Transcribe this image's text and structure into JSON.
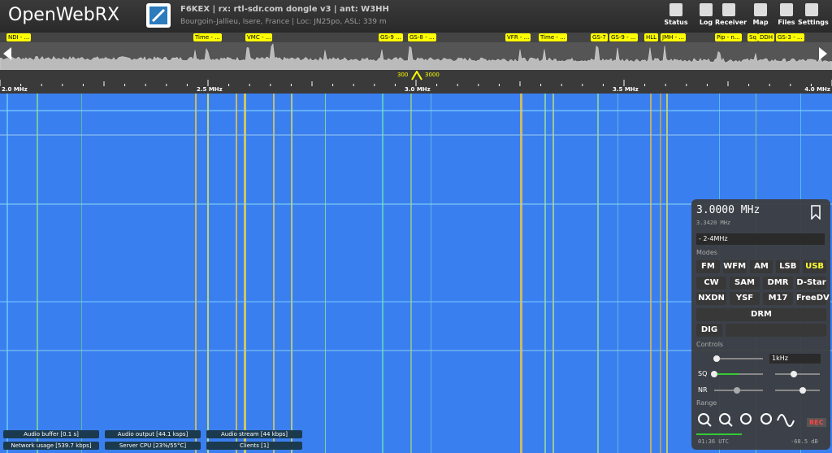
{
  "header": {
    "logo": "OpenWebRX",
    "receiver": "F6KEX | rx: rtl-sdr.com dongle v3 | ant: W3HH",
    "location": "Bourgoin-Jallieu, Isere, France | Loc: JN25po, ASL: 339 m",
    "nav": [
      "Status",
      "Log",
      "Receiver",
      "Map",
      "Files",
      "Settings"
    ]
  },
  "bookmarks": [
    "NDI - ...",
    "Time - ...",
    "VMC - ...",
    "GS-9 ...",
    "GS-8 - ...",
    "VFR - ...",
    "Time - ...",
    "GS-7",
    "GS-9 - ...",
    "HLL",
    "JMH - ...",
    "Pip - n...",
    "Sq",
    "DDH",
    "GS-3 - ..."
  ],
  "scale": {
    "labels": [
      "2.0 MHz",
      "2.5 MHz",
      "3.0 MHz",
      "3.5 MHz",
      "4.0 MHz"
    ],
    "filter_low": "300",
    "filter_high": "3000"
  },
  "panel": {
    "frequency": "3.0000 MHz",
    "offset": "3.3420 MHz",
    "profile": "- 2-4MHz",
    "modes_title": "Modes",
    "modes": [
      [
        "FM",
        "WFM",
        "AM",
        "LSB",
        "USB"
      ],
      [
        "CW",
        "SAM",
        "DMR",
        "D-Star"
      ],
      [
        "NXDN",
        "YSF",
        "M17",
        "FreeDV"
      ],
      [
        "DRM"
      ],
      [
        "DIG"
      ]
    ],
    "controls_title": "Controls",
    "step": "1kHz",
    "sq": "SQ",
    "nr": "NR",
    "range_title": "Range",
    "rec": "REC",
    "clock": "01:36 UTC",
    "level": "-68.5 dB"
  },
  "status": [
    "Audio buffer [0.1 s]",
    "Audio output [44.1 ksps]",
    "Audio stream [44 kbps]",
    "Network usage [539.7 kbps]",
    "Server CPU [23%/55°C]",
    "Clients [1]"
  ]
}
